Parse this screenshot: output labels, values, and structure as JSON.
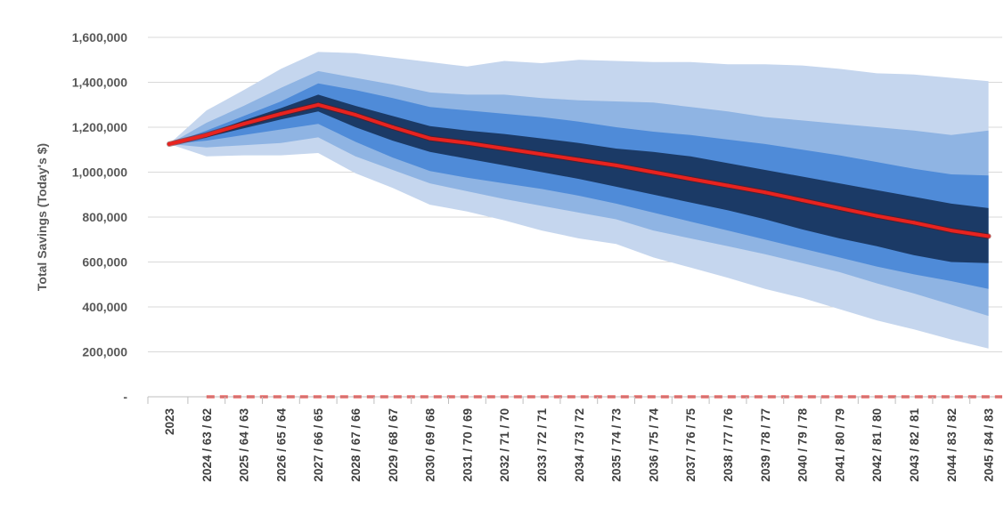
{
  "chart_data": {
    "type": "area",
    "title": "",
    "ylabel": "Total Savings (Today's $)",
    "xlabel": "",
    "ylim": [
      0,
      1600000
    ],
    "ytick_values": [
      0,
      200000,
      400000,
      600000,
      800000,
      1000000,
      1200000,
      1400000,
      1600000
    ],
    "ytick_labels": [
      "-",
      "200,000",
      "400,000",
      "600,000",
      "800,000",
      "1,000,000",
      "1,200,000",
      "1,400,000",
      "1,600,000"
    ],
    "grid": true,
    "legend": "none",
    "categories": [
      "2023",
      "2024 / 63 / 62",
      "2025 / 64 / 63",
      "2026 / 65 / 64",
      "2027 / 66 / 65",
      "2028 / 67 / 66",
      "2029 / 68 / 67",
      "2030 / 69 / 68",
      "2031 / 70 / 69",
      "2032 / 71 / 70",
      "2033 / 72 / 71",
      "2034 / 73 / 72",
      "2035 / 74 / 73",
      "2036 / 75 / 74",
      "2037 / 76 / 75",
      "2038 / 77 / 76",
      "2039 / 78 / 77",
      "2040 / 79 / 78",
      "2041 / 80 / 79",
      "2042 / 81 / 80",
      "2043 / 82 / 81",
      "2044 / 83 / 82",
      "2045 / 84 / 83"
    ],
    "bands": [
      {
        "color": "#c5d6ee",
        "upper": [
          1125000,
          1275000,
          1365000,
          1460000,
          1535000,
          1530000,
          1510000,
          1490000,
          1470000,
          1495000,
          1485000,
          1500000,
          1495000,
          1490000,
          1490000,
          1480000,
          1480000,
          1475000,
          1460000,
          1440000,
          1435000,
          1420000,
          1405000
        ],
        "lower": [
          1125000,
          1070000,
          1075000,
          1075000,
          1085000,
          995000,
          930000,
          855000,
          825000,
          785000,
          740000,
          705000,
          680000,
          620000,
          575000,
          530000,
          480000,
          440000,
          390000,
          340000,
          300000,
          255000,
          215000
        ]
      },
      {
        "color": "#8fb4e3",
        "upper": [
          1125000,
          1220000,
          1295000,
          1375000,
          1450000,
          1420000,
          1390000,
          1355000,
          1345000,
          1345000,
          1330000,
          1320000,
          1315000,
          1310000,
          1290000,
          1270000,
          1245000,
          1230000,
          1215000,
          1200000,
          1185000,
          1165000,
          1185000
        ],
        "lower": [
          1125000,
          1110000,
          1120000,
          1130000,
          1155000,
          1070000,
          1010000,
          950000,
          915000,
          880000,
          850000,
          820000,
          790000,
          740000,
          705000,
          670000,
          635000,
          595000,
          555000,
          505000,
          460000,
          410000,
          360000
        ]
      },
      {
        "color": "#4f8bd8",
        "upper": [
          1125000,
          1185000,
          1250000,
          1315000,
          1395000,
          1365000,
          1330000,
          1290000,
          1275000,
          1260000,
          1245000,
          1225000,
          1200000,
          1180000,
          1165000,
          1145000,
          1125000,
          1100000,
          1075000,
          1045000,
          1015000,
          990000,
          985000
        ],
        "lower": [
          1125000,
          1140000,
          1165000,
          1190000,
          1215000,
          1135000,
          1065000,
          1005000,
          975000,
          950000,
          925000,
          895000,
          860000,
          820000,
          780000,
          740000,
          700000,
          660000,
          620000,
          580000,
          545000,
          515000,
          480000
        ]
      },
      {
        "color": "#1b3a66",
        "upper": [
          1125000,
          1170000,
          1230000,
          1285000,
          1345000,
          1295000,
          1250000,
          1205000,
          1185000,
          1170000,
          1150000,
          1130000,
          1105000,
          1090000,
          1070000,
          1040000,
          1010000,
          980000,
          950000,
          920000,
          890000,
          860000,
          840000
        ],
        "lower": [
          1125000,
          1155000,
          1195000,
          1235000,
          1270000,
          1200000,
          1140000,
          1090000,
          1060000,
          1030000,
          1000000,
          970000,
          935000,
          900000,
          865000,
          830000,
          790000,
          745000,
          705000,
          670000,
          630000,
          600000,
          595000
        ]
      }
    ],
    "series": [
      {
        "color": "#e8231f",
        "values": [
          1125000,
          1165000,
          1215000,
          1260000,
          1300000,
          1255000,
          1200000,
          1150000,
          1130000,
          1105000,
          1080000,
          1055000,
          1030000,
          1000000,
          970000,
          940000,
          910000,
          875000,
          840000,
          805000,
          775000,
          740000,
          715000
        ]
      },
      {
        "color": "#e8231f",
        "style": "dashed",
        "values": [
          0,
          0,
          0,
          0,
          0,
          0,
          0,
          0,
          0,
          0,
          0,
          0,
          0,
          0,
          0,
          0,
          0,
          0,
          0,
          0,
          0,
          0,
          0
        ]
      }
    ]
  }
}
